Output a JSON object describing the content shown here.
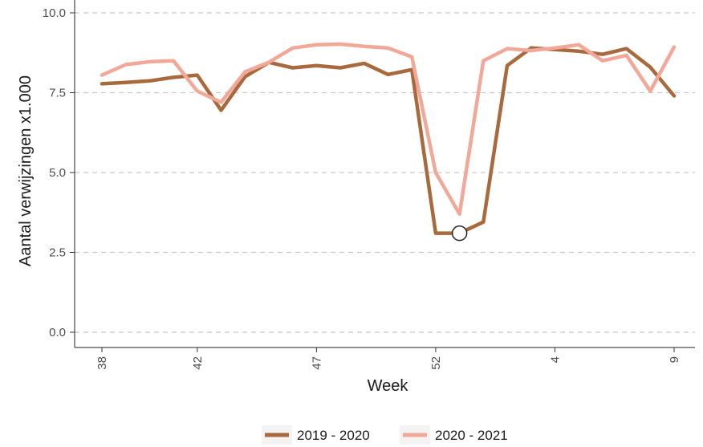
{
  "chart_data": {
    "type": "line",
    "xlabel": "Week",
    "ylabel": "Aantal verwijzingen x1.000",
    "ylim": [
      0,
      10
    ],
    "y_ticks": [
      "0.0",
      "2.5",
      "5.0",
      "7.5",
      "10.0"
    ],
    "x_ticks": [
      "38",
      "42",
      "47",
      "52",
      "4",
      "9"
    ],
    "grid": "horizontal dashed",
    "legend_position": "bottom",
    "x": [
      "38",
      "39",
      "40",
      "41",
      "42",
      "43",
      "44",
      "45",
      "46",
      "47",
      "48",
      "49",
      "50",
      "51",
      "52",
      "53",
      "1",
      "2",
      "3",
      "4",
      "5",
      "6",
      "7",
      "8",
      "9"
    ],
    "series": [
      {
        "name": "2019 - 2020",
        "color": "#a86a3c",
        "values": [
          7.78,
          7.82,
          7.87,
          7.98,
          8.05,
          6.95,
          8.0,
          8.45,
          8.28,
          8.35,
          8.28,
          8.42,
          8.07,
          8.22,
          3.1,
          3.1,
          3.45,
          8.35,
          8.9,
          8.85,
          8.8,
          8.7,
          8.88,
          8.3,
          7.4
        ]
      },
      {
        "name": "2020 - 2021",
        "color": "#f2a898",
        "values": [
          8.05,
          8.38,
          8.47,
          8.5,
          7.55,
          7.2,
          8.15,
          8.45,
          8.9,
          9.0,
          9.02,
          8.95,
          8.9,
          8.62,
          5.0,
          3.7,
          8.5,
          8.88,
          8.82,
          8.9,
          9.0,
          8.5,
          8.67,
          7.55,
          8.93
        ]
      }
    ],
    "marker": {
      "x": "53",
      "y": 3.1
    }
  }
}
